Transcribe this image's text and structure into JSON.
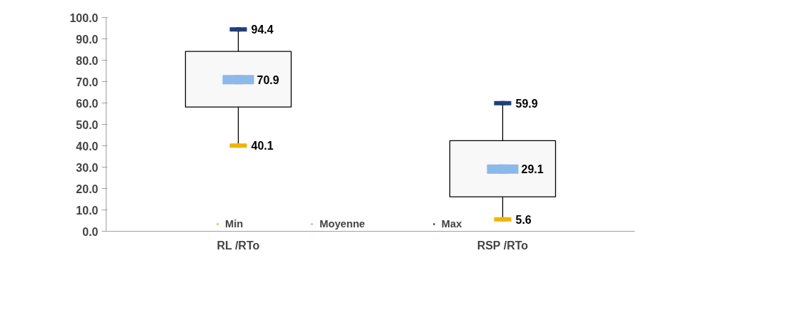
{
  "chart_data": {
    "type": "box",
    "categories": [
      "RL /RTo",
      "RSP /RTo"
    ],
    "boxes": [
      {
        "low": 40.1,
        "q1": 58.1,
        "q3": 84.1,
        "high": 94.4
      },
      {
        "low": 5.6,
        "q1": 16.1,
        "q3": 42.4,
        "high": 59.9
      }
    ],
    "series": [
      {
        "name": "Min",
        "type": "scatter",
        "color": "#f0b400",
        "values": [
          40.1,
          5.6
        ]
      },
      {
        "name": "Moyenne",
        "type": "scatter",
        "color": "#8db8ea",
        "values": [
          70.9,
          29.1
        ]
      },
      {
        "name": "Max",
        "type": "scatter",
        "color": "#1f3f7a",
        "values": [
          94.4,
          59.9
        ]
      }
    ],
    "ylim": [
      0,
      100
    ],
    "yticks": [
      {
        "value": 0,
        "label": "0.0"
      },
      {
        "value": 10,
        "label": "10.0"
      },
      {
        "value": 20,
        "label": "20.0"
      },
      {
        "value": 30,
        "label": "30.0"
      },
      {
        "value": 40,
        "label": "40.0"
      },
      {
        "value": 50,
        "label": "50.0"
      },
      {
        "value": 60,
        "label": "60.0"
      },
      {
        "value": 70,
        "label": "70.0"
      },
      {
        "value": 80,
        "label": "80.0"
      },
      {
        "value": 90,
        "label": "90.0"
      },
      {
        "value": 100,
        "label": "100.0"
      }
    ],
    "data_labels": true,
    "legend": "bottom",
    "grid": false
  }
}
